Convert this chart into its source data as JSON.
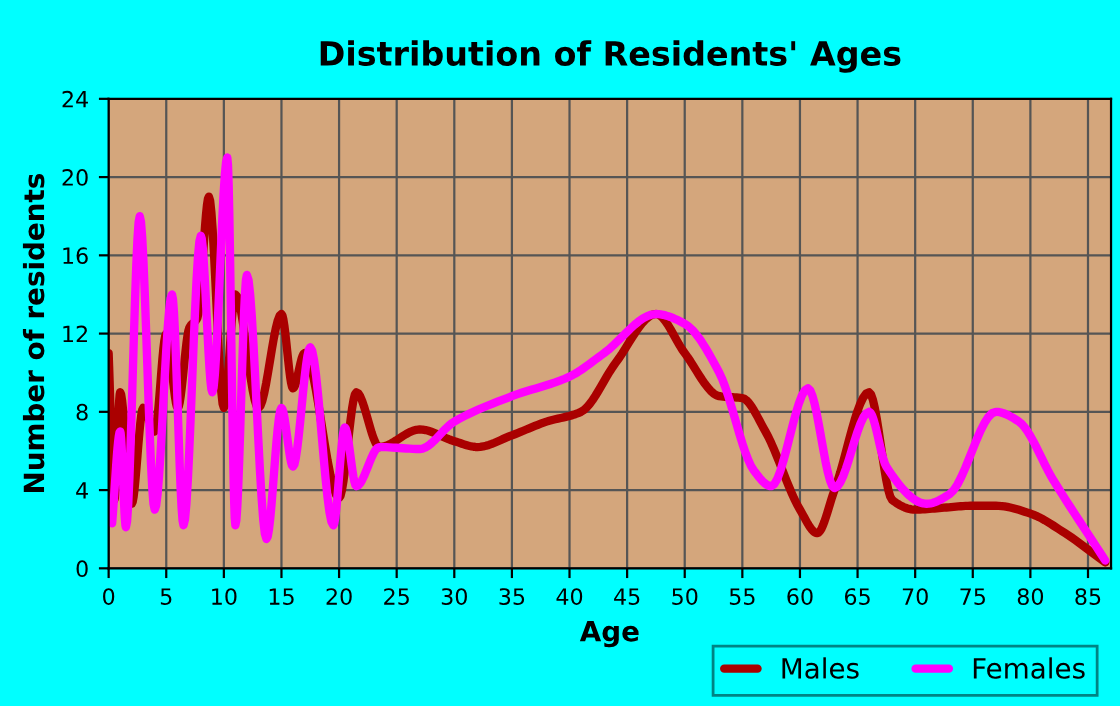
{
  "chart_data": {
    "type": "line",
    "title": "Distribution of Residents' Ages",
    "xlabel": "Age",
    "ylabel": "Number of residents",
    "xlim": [
      0,
      87
    ],
    "xticks": [
      0,
      5,
      10,
      15,
      20,
      25,
      30,
      35,
      40,
      45,
      50,
      55,
      60,
      65,
      70,
      75,
      80,
      85
    ],
    "ylim": [
      0,
      24
    ],
    "yticks": [
      0,
      4,
      8,
      12,
      16,
      20,
      24
    ],
    "grid": true,
    "legend": "bottom right",
    "marker": "none",
    "line_style": "solid",
    "series": [
      {
        "name": "Males",
        "color": "#aa0000",
        "x": [
          0,
          0.5,
          1,
          2,
          3,
          4,
          5,
          6,
          7,
          7.7,
          8.7,
          10,
          11,
          13,
          15,
          16,
          17,
          20,
          21.5,
          23.5,
          27,
          30,
          32,
          35,
          38,
          41,
          44,
          47.5,
          50,
          53,
          55,
          57,
          60,
          61.5,
          63,
          66,
          68,
          70,
          72.5,
          75,
          77,
          80,
          83,
          86.5
        ],
        "values": [
          11,
          3.5,
          9,
          3.3,
          8.2,
          7,
          12,
          8.2,
          12.3,
          12.8,
          19,
          8.2,
          14,
          8.2,
          13,
          9.2,
          11,
          3.6,
          9,
          6.2,
          7.1,
          6.5,
          6.2,
          6.8,
          7.5,
          8,
          10.5,
          13,
          11,
          8.8,
          8.7,
          7,
          3,
          1.8,
          4,
          9,
          3.5,
          3,
          3.1,
          3.2,
          3.2,
          2.8,
          1.8,
          0.3
        ]
      },
      {
        "name": "Females",
        "color": "#ff00ff",
        "x": [
          0.3,
          1,
          1.5,
          2.7,
          4,
          5.5,
          6.5,
          8,
          9,
          10.3,
          11,
          12,
          13.7,
          15,
          16,
          17.5,
          19.5,
          20.5,
          21.5,
          23.5,
          27,
          30,
          35,
          40,
          43,
          47.5,
          50,
          53,
          56,
          57.5,
          60.7,
          63,
          66,
          67.5,
          71,
          73,
          77,
          79,
          82,
          86.5
        ],
        "values": [
          2.3,
          7,
          2.1,
          18,
          3,
          14,
          2.2,
          17,
          9,
          21,
          2.2,
          15,
          1.5,
          8.2,
          5.2,
          11.3,
          2.2,
          7.2,
          4.2,
          6.2,
          6.1,
          7.5,
          8.8,
          9.8,
          11,
          13,
          12.5,
          10,
          5,
          4.2,
          9.2,
          4.1,
          8,
          5.2,
          3.3,
          3.8,
          8,
          7.5,
          4.5,
          0.4
        ]
      }
    ]
  }
}
